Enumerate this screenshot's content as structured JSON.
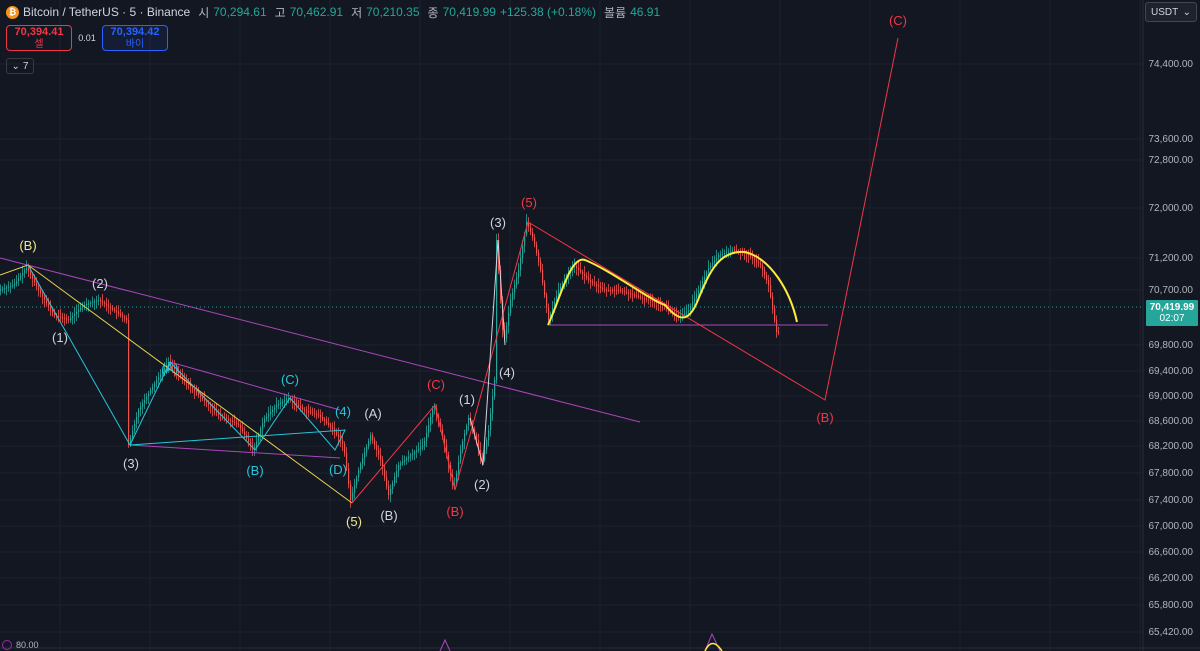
{
  "legend": {
    "symbol": "Bitcoin / TetherUS · 5 · Binance",
    "open_label": "시",
    "open": "70,294.61",
    "high_label": "고",
    "high": "70,462.91",
    "low_label": "저",
    "low": "70,210.35",
    "close_label": "종",
    "close": "70,419.99",
    "change": "+125.38 (+0.18%)",
    "volume_label": "볼륨",
    "volume": "46.91",
    "up_color": "#26a69a"
  },
  "trade": {
    "sell_price": "70,394.41",
    "sell_label": "셀",
    "spread": "0.01",
    "buy_price": "70,394.42",
    "buy_label": "바이"
  },
  "indicators": {
    "count": "7"
  },
  "currency": {
    "label": "USDT"
  },
  "last_price": {
    "value": "70,419.99",
    "countdown": "02:07",
    "color": "#26a69a"
  },
  "bottom": {
    "value": "80.00"
  },
  "chart_data": {
    "type": "line",
    "y_ticks": [
      "74,400.00",
      "73,600.00",
      "72,800.00",
      "72,000.00",
      "71,200.00",
      "70,700.00",
      "69,800.00",
      "69,400.00",
      "69,000.00",
      "68,600.00",
      "68,200.00",
      "67,800.00",
      "67,400.00",
      "67,000.00",
      "66,600.00",
      "66,200.00",
      "65,800.00",
      "65,420.00"
    ],
    "wave_labels": [
      {
        "text": "(B)",
        "color": "#f0e68c"
      },
      {
        "text": "(1)",
        "color": "#d1d4dc"
      },
      {
        "text": "(2)",
        "color": "#d1d4dc"
      },
      {
        "text": "(3)",
        "color": "#d1d4dc"
      },
      {
        "text": "(A)",
        "color": "#26c6da"
      },
      {
        "text": "(B)",
        "color": "#26c6da"
      },
      {
        "text": "(C)",
        "color": "#26c6da"
      },
      {
        "text": "(4)",
        "color": "#26c6da"
      },
      {
        "text": "(D)",
        "color": "#26c6da"
      },
      {
        "text": "(5)",
        "color": "#f0e68c"
      },
      {
        "text": "(A)",
        "color": "#d1d4dc"
      },
      {
        "text": "(B)",
        "color": "#d1d4dc"
      },
      {
        "text": "(C)",
        "color": "#f23645"
      },
      {
        "text": "(B)",
        "color": "#f23645"
      },
      {
        "text": "(1)",
        "color": "#d1d4dc"
      },
      {
        "text": "(2)",
        "color": "#d1d4dc"
      },
      {
        "text": "(3)",
        "color": "#d1d4dc"
      },
      {
        "text": "(4)",
        "color": "#d1d4dc"
      },
      {
        "text": "(5)",
        "color": "#f23645"
      },
      {
        "text": "(B)",
        "color": "#f23645"
      },
      {
        "text": "(C)",
        "color": "#f23645"
      }
    ],
    "grid": true,
    "colors": {
      "up": "#26a69a",
      "down": "#ef5350",
      "trendline": "#ab47bc",
      "wave_yellow": "#e8d44d",
      "wave_cyan": "#26c6da",
      "wave_red": "#f23645",
      "arc": "#ffeb3b"
    }
  }
}
